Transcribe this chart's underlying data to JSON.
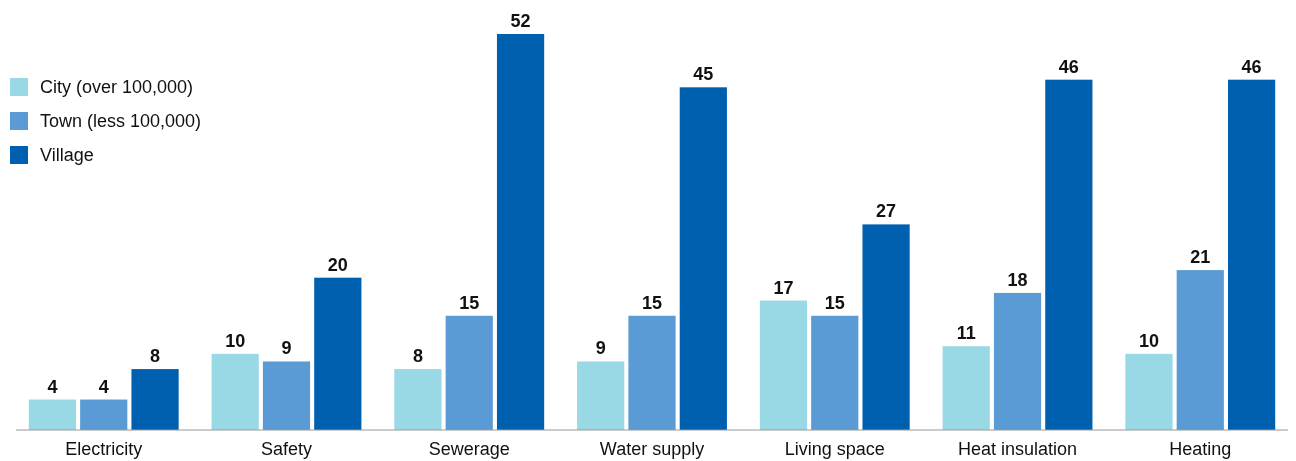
{
  "chart_data": {
    "type": "bar",
    "categories": [
      "Electricity",
      "Safety",
      "Sewerage",
      "Water supply",
      "Living space",
      "Heat insulation",
      "Heating"
    ],
    "series": [
      {
        "name": "City (over 100,000)",
        "color": "#99d9e6",
        "values": [
          4,
          10,
          8,
          9,
          17,
          11,
          10
        ]
      },
      {
        "name": "Town (less 100,000)",
        "color": "#5b9bd5",
        "values": [
          4,
          9,
          15,
          15,
          15,
          18,
          21
        ]
      },
      {
        "name": "Village",
        "color": "#0060b0",
        "values": [
          8,
          20,
          52,
          45,
          27,
          46,
          46
        ]
      }
    ],
    "data_labels": true,
    "legend": "top left",
    "grid": false
  }
}
